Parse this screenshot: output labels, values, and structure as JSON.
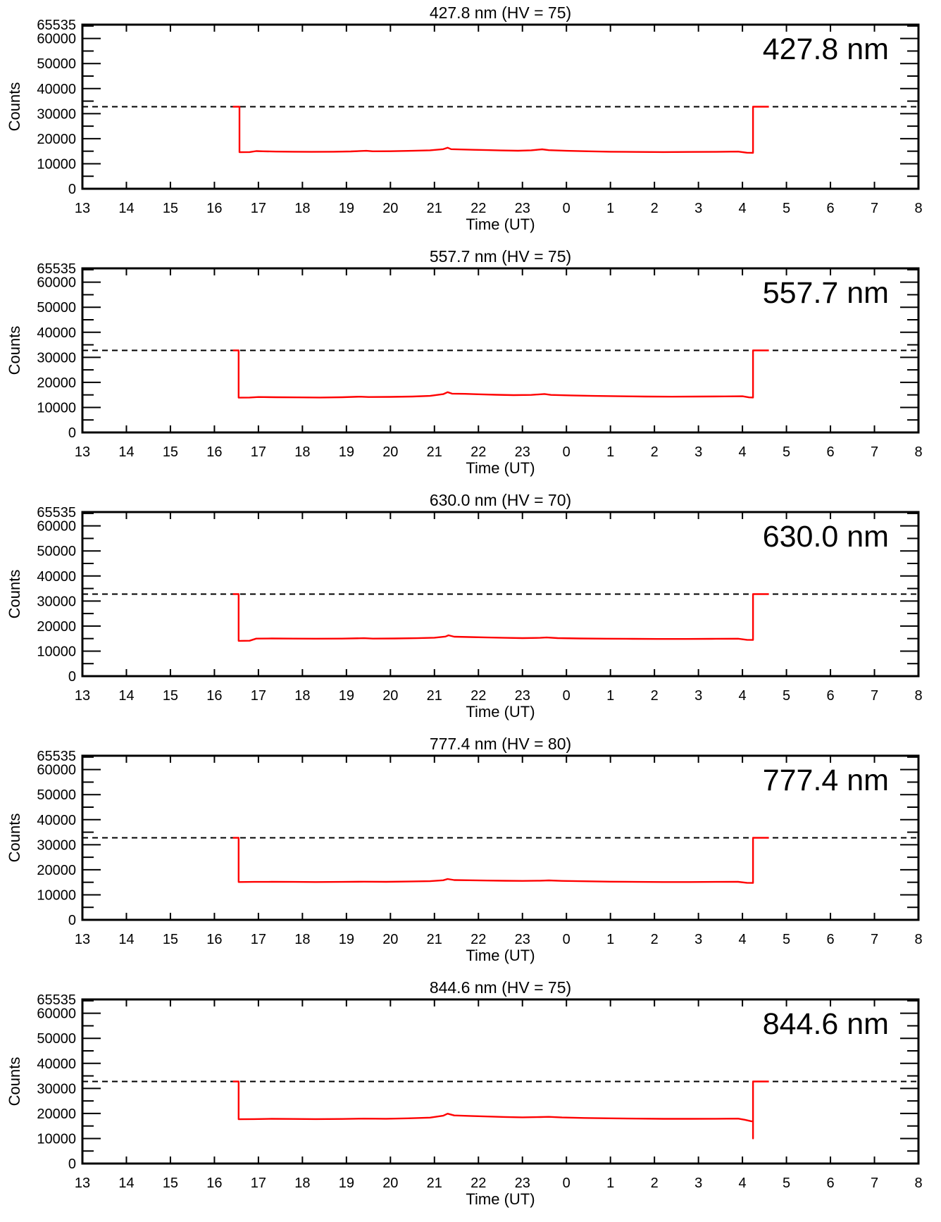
{
  "page": {
    "background": "#ffffff",
    "text_color": "#000000"
  },
  "chart_data": [
    {
      "type": "line",
      "title": "427.8 nm (HV = 75)",
      "inset_label": "427.8 nm",
      "wavelength_nm": "427.8",
      "hv": "75",
      "xlabel": "Time (UT)",
      "ylabel": "Counts",
      "x_range_hours": [
        13,
        32
      ],
      "x_tick_labels": [
        "13",
        "14",
        "15",
        "16",
        "17",
        "18",
        "19",
        "20",
        "21",
        "22",
        "23",
        "0",
        "1",
        "2",
        "3",
        "4",
        "5",
        "6",
        "7",
        "8"
      ],
      "ylim": [
        0,
        65535
      ],
      "y_major_ticks": [
        0,
        10000,
        20000,
        30000,
        40000,
        50000,
        60000,
        65535
      ],
      "y_major_tick_labels": [
        "0",
        "10000",
        "20000",
        "30000",
        "40000",
        "50000",
        "60000",
        "65535"
      ],
      "y_minor_step": 5000,
      "reference_line_counts": 32767,
      "line_color": "#ff0000",
      "frame_color": "#000000",
      "grid": false,
      "series": [
        {
          "name": "counts",
          "points_hour_counts": [
            [
              16.42,
              32767
            ],
            [
              16.57,
              32767
            ],
            [
              16.57,
              14600
            ],
            [
              16.8,
              14650
            ],
            [
              16.95,
              15050
            ],
            [
              17.1,
              14950
            ],
            [
              17.4,
              14850
            ],
            [
              17.8,
              14800
            ],
            [
              18.2,
              14750
            ],
            [
              18.7,
              14800
            ],
            [
              19.1,
              14900
            ],
            [
              19.45,
              15150
            ],
            [
              19.6,
              14950
            ],
            [
              20.0,
              15000
            ],
            [
              20.5,
              15150
            ],
            [
              20.9,
              15350
            ],
            [
              21.2,
              15800
            ],
            [
              21.3,
              16400
            ],
            [
              21.38,
              15800
            ],
            [
              21.6,
              15700
            ],
            [
              21.9,
              15550
            ],
            [
              22.2,
              15450
            ],
            [
              22.5,
              15300
            ],
            [
              22.9,
              15200
            ],
            [
              23.2,
              15350
            ],
            [
              23.45,
              15750
            ],
            [
              23.6,
              15400
            ],
            [
              24.0,
              15150
            ],
            [
              24.5,
              14950
            ],
            [
              25.0,
              14800
            ],
            [
              25.6,
              14700
            ],
            [
              26.2,
              14650
            ],
            [
              26.8,
              14700
            ],
            [
              27.4,
              14750
            ],
            [
              27.9,
              14850
            ],
            [
              28.1,
              14400
            ],
            [
              28.24,
              14350
            ],
            [
              28.24,
              32767
            ],
            [
              28.6,
              32767
            ]
          ]
        }
      ]
    },
    {
      "type": "line",
      "title": "557.7 nm (HV = 75)",
      "inset_label": "557.7 nm",
      "wavelength_nm": "557.7",
      "hv": "75",
      "xlabel": "Time (UT)",
      "ylabel": "Counts",
      "x_range_hours": [
        13,
        32
      ],
      "x_tick_labels": [
        "13",
        "14",
        "15",
        "16",
        "17",
        "18",
        "19",
        "20",
        "21",
        "22",
        "23",
        "0",
        "1",
        "2",
        "3",
        "4",
        "5",
        "6",
        "7",
        "8"
      ],
      "ylim": [
        0,
        65535
      ],
      "y_major_ticks": [
        0,
        10000,
        20000,
        30000,
        40000,
        50000,
        60000,
        65535
      ],
      "y_major_tick_labels": [
        "0",
        "10000",
        "20000",
        "30000",
        "40000",
        "50000",
        "60000",
        "65535"
      ],
      "y_minor_step": 5000,
      "reference_line_counts": 32767,
      "line_color": "#ff0000",
      "frame_color": "#000000",
      "grid": false,
      "series": [
        {
          "name": "counts",
          "points_hour_counts": [
            [
              16.42,
              32767
            ],
            [
              16.55,
              32767
            ],
            [
              16.55,
              13900
            ],
            [
              16.8,
              13950
            ],
            [
              17.0,
              14150
            ],
            [
              17.4,
              14050
            ],
            [
              17.9,
              14000
            ],
            [
              18.4,
              13950
            ],
            [
              18.9,
              14050
            ],
            [
              19.3,
              14300
            ],
            [
              19.5,
              14150
            ],
            [
              20.0,
              14200
            ],
            [
              20.5,
              14350
            ],
            [
              20.9,
              14600
            ],
            [
              21.2,
              15300
            ],
            [
              21.3,
              16100
            ],
            [
              21.4,
              15500
            ],
            [
              21.7,
              15400
            ],
            [
              22.0,
              15250
            ],
            [
              22.4,
              15050
            ],
            [
              22.8,
              14900
            ],
            [
              23.2,
              15000
            ],
            [
              23.5,
              15350
            ],
            [
              23.65,
              15000
            ],
            [
              24.1,
              14800
            ],
            [
              24.6,
              14600
            ],
            [
              25.2,
              14450
            ],
            [
              25.8,
              14350
            ],
            [
              26.4,
              14300
            ],
            [
              27.0,
              14350
            ],
            [
              27.6,
              14400
            ],
            [
              28.0,
              14450
            ],
            [
              28.15,
              14000
            ],
            [
              28.24,
              13950
            ],
            [
              28.24,
              32767
            ],
            [
              28.6,
              32767
            ]
          ]
        }
      ]
    },
    {
      "type": "line",
      "title": "630.0 nm (HV = 70)",
      "inset_label": "630.0 nm",
      "wavelength_nm": "630.0",
      "hv": "70",
      "xlabel": "Time (UT)",
      "ylabel": "Counts",
      "x_range_hours": [
        13,
        32
      ],
      "x_tick_labels": [
        "13",
        "14",
        "15",
        "16",
        "17",
        "18",
        "19",
        "20",
        "21",
        "22",
        "23",
        "0",
        "1",
        "2",
        "3",
        "4",
        "5",
        "6",
        "7",
        "8"
      ],
      "ylim": [
        0,
        65535
      ],
      "y_major_ticks": [
        0,
        10000,
        20000,
        30000,
        40000,
        50000,
        60000,
        65535
      ],
      "y_major_tick_labels": [
        "0",
        "10000",
        "20000",
        "30000",
        "40000",
        "50000",
        "60000",
        "65535"
      ],
      "y_minor_step": 5000,
      "reference_line_counts": 32767,
      "line_color": "#ff0000",
      "frame_color": "#000000",
      "grid": false,
      "series": [
        {
          "name": "counts",
          "points_hour_counts": [
            [
              16.42,
              32767
            ],
            [
              16.55,
              32767
            ],
            [
              16.55,
              14100
            ],
            [
              16.8,
              14150
            ],
            [
              16.95,
              15000
            ],
            [
              17.3,
              15050
            ],
            [
              17.8,
              15000
            ],
            [
              18.3,
              14950
            ],
            [
              18.9,
              15000
            ],
            [
              19.4,
              15150
            ],
            [
              19.6,
              15000
            ],
            [
              20.1,
              15050
            ],
            [
              20.6,
              15150
            ],
            [
              21.0,
              15350
            ],
            [
              21.25,
              15800
            ],
            [
              21.32,
              16300
            ],
            [
              21.45,
              15750
            ],
            [
              21.8,
              15600
            ],
            [
              22.2,
              15450
            ],
            [
              22.6,
              15300
            ],
            [
              23.0,
              15200
            ],
            [
              23.4,
              15300
            ],
            [
              23.55,
              15450
            ],
            [
              23.8,
              15200
            ],
            [
              24.3,
              15050
            ],
            [
              24.9,
              14950
            ],
            [
              25.5,
              14900
            ],
            [
              26.1,
              14850
            ],
            [
              26.7,
              14850
            ],
            [
              27.3,
              14900
            ],
            [
              27.9,
              14950
            ],
            [
              28.1,
              14500
            ],
            [
              28.24,
              14450
            ],
            [
              28.24,
              32767
            ],
            [
              28.6,
              32767
            ]
          ]
        }
      ]
    },
    {
      "type": "line",
      "title": "777.4 nm (HV = 80)",
      "inset_label": "777.4 nm",
      "wavelength_nm": "777.4",
      "hv": "80",
      "xlabel": "Time (UT)",
      "ylabel": "Counts",
      "x_range_hours": [
        13,
        32
      ],
      "x_tick_labels": [
        "13",
        "14",
        "15",
        "16",
        "17",
        "18",
        "19",
        "20",
        "21",
        "22",
        "23",
        "0",
        "1",
        "2",
        "3",
        "4",
        "5",
        "6",
        "7",
        "8"
      ],
      "ylim": [
        0,
        65535
      ],
      "y_major_ticks": [
        0,
        10000,
        20000,
        30000,
        40000,
        50000,
        60000,
        65535
      ],
      "y_major_tick_labels": [
        "0",
        "10000",
        "20000",
        "30000",
        "40000",
        "50000",
        "60000",
        "65535"
      ],
      "y_minor_step": 5000,
      "reference_line_counts": 32767,
      "line_color": "#ff0000",
      "frame_color": "#000000",
      "grid": false,
      "series": [
        {
          "name": "counts",
          "points_hour_counts": [
            [
              16.42,
              32767
            ],
            [
              16.55,
              32767
            ],
            [
              16.55,
              15100
            ],
            [
              16.9,
              15150
            ],
            [
              17.3,
              15200
            ],
            [
              17.8,
              15150
            ],
            [
              18.3,
              15100
            ],
            [
              18.9,
              15150
            ],
            [
              19.4,
              15250
            ],
            [
              19.9,
              15200
            ],
            [
              20.4,
              15300
            ],
            [
              20.9,
              15450
            ],
            [
              21.2,
              15800
            ],
            [
              21.3,
              16300
            ],
            [
              21.45,
              15900
            ],
            [
              21.8,
              15800
            ],
            [
              22.2,
              15700
            ],
            [
              22.6,
              15600
            ],
            [
              23.0,
              15550
            ],
            [
              23.4,
              15650
            ],
            [
              23.6,
              15750
            ],
            [
              23.9,
              15550
            ],
            [
              24.4,
              15400
            ],
            [
              25.0,
              15250
            ],
            [
              25.6,
              15150
            ],
            [
              26.2,
              15100
            ],
            [
              26.8,
              15100
            ],
            [
              27.4,
              15150
            ],
            [
              27.9,
              15200
            ],
            [
              28.1,
              14800
            ],
            [
              28.24,
              14750
            ],
            [
              28.24,
              32767
            ],
            [
              28.6,
              32767
            ]
          ]
        }
      ]
    },
    {
      "type": "line",
      "title": "844.6 nm (HV = 75)",
      "inset_label": "844.6 nm",
      "wavelength_nm": "844.6",
      "hv": "75",
      "xlabel": "Time (UT)",
      "ylabel": "Counts",
      "x_range_hours": [
        13,
        32
      ],
      "x_tick_labels": [
        "13",
        "14",
        "15",
        "16",
        "17",
        "18",
        "19",
        "20",
        "21",
        "22",
        "23",
        "0",
        "1",
        "2",
        "3",
        "4",
        "5",
        "6",
        "7",
        "8"
      ],
      "ylim": [
        0,
        65535
      ],
      "y_major_ticks": [
        0,
        10000,
        20000,
        30000,
        40000,
        50000,
        60000,
        65535
      ],
      "y_major_tick_labels": [
        "0",
        "10000",
        "20000",
        "30000",
        "40000",
        "50000",
        "60000",
        "65535"
      ],
      "y_minor_step": 5000,
      "reference_line_counts": 32767,
      "line_color": "#ff0000",
      "frame_color": "#000000",
      "grid": false,
      "series": [
        {
          "name": "counts",
          "points_hour_counts": [
            [
              16.42,
              32767
            ],
            [
              16.55,
              32767
            ],
            [
              16.55,
              17700
            ],
            [
              16.9,
              17750
            ],
            [
              17.3,
              17850
            ],
            [
              17.8,
              17800
            ],
            [
              18.3,
              17750
            ],
            [
              18.9,
              17800
            ],
            [
              19.4,
              17950
            ],
            [
              19.9,
              17900
            ],
            [
              20.4,
              18050
            ],
            [
              20.9,
              18350
            ],
            [
              21.2,
              19100
            ],
            [
              21.3,
              19900
            ],
            [
              21.45,
              19200
            ],
            [
              21.8,
              19000
            ],
            [
              22.2,
              18800
            ],
            [
              22.6,
              18600
            ],
            [
              23.0,
              18450
            ],
            [
              23.4,
              18550
            ],
            [
              23.6,
              18650
            ],
            [
              23.9,
              18400
            ],
            [
              24.4,
              18200
            ],
            [
              25.0,
              18050
            ],
            [
              25.6,
              17950
            ],
            [
              26.2,
              17850
            ],
            [
              26.8,
              17850
            ],
            [
              27.4,
              17900
            ],
            [
              27.9,
              17950
            ],
            [
              28.05,
              17500
            ],
            [
              28.2,
              16900
            ],
            [
              28.24,
              16850
            ],
            [
              28.24,
              10000
            ],
            [
              28.24,
              32767
            ],
            [
              28.6,
              32767
            ]
          ]
        }
      ]
    }
  ]
}
